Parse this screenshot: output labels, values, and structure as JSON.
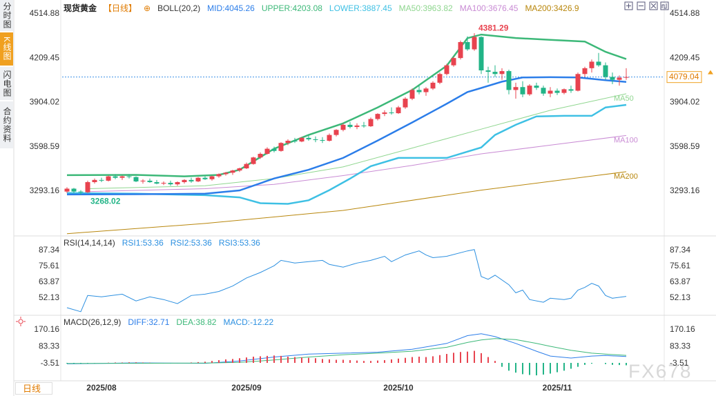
{
  "sidebar": {
    "tabs": [
      "分时图",
      "K线图",
      "闪电图",
      "合约资料"
    ]
  },
  "period_button": "日线",
  "watermark": "FX678",
  "chart_data": [
    {
      "type": "candlestick",
      "title": "现货黄金",
      "period": "【日线】",
      "indicator": "BOLL(20,2)",
      "up_color": "#e8434f",
      "down_color": "#22b487",
      "ylim": [
        2993.7,
        4562.4
      ],
      "yticks": [
        4514.88,
        4209.45,
        3904.02,
        3598.59,
        3293.16
      ],
      "last_price": 4079.04,
      "annotations": [
        {
          "x": 59,
          "value": 4381.29
        },
        {
          "x": 2,
          "value": 3268.02
        }
      ],
      "candles": [
        [
          3290,
          3320,
          3280,
          3310
        ],
        [
          3310,
          3315,
          3280,
          3290
        ],
        [
          3290,
          3300,
          3268.02,
          3285
        ],
        [
          3285,
          3365,
          3280,
          3355
        ],
        [
          3355,
          3380,
          3345,
          3370
        ],
        [
          3370,
          3385,
          3355,
          3365
        ],
        [
          3365,
          3400,
          3360,
          3395
        ],
        [
          3395,
          3410,
          3375,
          3385
        ],
        [
          3385,
          3400,
          3370,
          3395
        ],
        [
          3395,
          3410,
          3380,
          3390
        ],
        [
          3390,
          3395,
          3355,
          3360
        ],
        [
          3360,
          3375,
          3345,
          3365
        ],
        [
          3365,
          3380,
          3350,
          3355
        ],
        [
          3355,
          3370,
          3340,
          3345
        ],
        [
          3345,
          3360,
          3335,
          3350
        ],
        [
          3350,
          3365,
          3330,
          3340
        ],
        [
          3340,
          3360,
          3330,
          3355
        ],
        [
          3355,
          3375,
          3345,
          3370
        ],
        [
          3370,
          3385,
          3350,
          3360
        ],
        [
          3360,
          3390,
          3355,
          3385
        ],
        [
          3385,
          3395,
          3370,
          3375
        ],
        [
          3375,
          3400,
          3365,
          3395
        ],
        [
          3395,
          3415,
          3385,
          3410
        ],
        [
          3410,
          3425,
          3400,
          3420
        ],
        [
          3420,
          3440,
          3405,
          3435
        ],
        [
          3435,
          3455,
          3425,
          3450
        ],
        [
          3450,
          3490,
          3445,
          3480
        ],
        [
          3480,
          3530,
          3475,
          3525
        ],
        [
          3525,
          3560,
          3515,
          3550
        ],
        [
          3550,
          3595,
          3545,
          3585
        ],
        [
          3585,
          3600,
          3560,
          3570
        ],
        [
          3570,
          3630,
          3565,
          3625
        ],
        [
          3625,
          3650,
          3610,
          3640
        ],
        [
          3640,
          3660,
          3625,
          3635
        ],
        [
          3635,
          3665,
          3630,
          3660
        ],
        [
          3660,
          3680,
          3640,
          3650
        ],
        [
          3650,
          3670,
          3630,
          3645
        ],
        [
          3645,
          3665,
          3625,
          3640
        ],
        [
          3640,
          3690,
          3635,
          3680
        ],
        [
          3680,
          3720,
          3670,
          3715
        ],
        [
          3715,
          3760,
          3705,
          3750
        ],
        [
          3750,
          3770,
          3725,
          3735
        ],
        [
          3735,
          3760,
          3720,
          3745
        ],
        [
          3745,
          3770,
          3730,
          3740
        ],
        [
          3740,
          3800,
          3735,
          3790
        ],
        [
          3790,
          3830,
          3780,
          3825
        ],
        [
          3825,
          3850,
          3810,
          3835
        ],
        [
          3835,
          3870,
          3820,
          3830
        ],
        [
          3830,
          3880,
          3825,
          3870
        ],
        [
          3870,
          3940,
          3860,
          3930
        ],
        [
          3930,
          4000,
          3920,
          3990
        ],
        [
          3990,
          4020,
          3960,
          3975
        ],
        [
          3975,
          4010,
          3950,
          4000
        ],
        [
          4000,
          4050,
          3990,
          4040
        ],
        [
          4040,
          4110,
          4030,
          4100
        ],
        [
          4100,
          4170,
          4090,
          4160
        ],
        [
          4160,
          4220,
          4150,
          4210
        ],
        [
          4210,
          4330,
          4200,
          4320
        ],
        [
          4320,
          4360,
          4260,
          4270
        ],
        [
          4270,
          4381.29,
          4260,
          4355
        ],
        [
          4355,
          4360,
          4100,
          4125
        ],
        [
          4125,
          4150,
          4040,
          4115
        ],
        [
          4115,
          4160,
          4080,
          4100
        ],
        [
          4100,
          4140,
          4060,
          4120
        ],
        [
          4120,
          4130,
          3960,
          3990
        ],
        [
          3990,
          4040,
          3930,
          4010
        ],
        [
          4010,
          4050,
          3940,
          3960
        ],
        [
          3960,
          4030,
          3950,
          4020
        ],
        [
          4020,
          4040,
          3990,
          4005
        ],
        [
          4005,
          4020,
          3950,
          3965
        ],
        [
          3965,
          4010,
          3940,
          3985
        ],
        [
          3985,
          4000,
          3955,
          3970
        ],
        [
          3970,
          4000,
          3960,
          3995
        ],
        [
          3995,
          4020,
          3970,
          3985
        ],
        [
          3985,
          4110,
          3980,
          4100
        ],
        [
          4100,
          4150,
          4080,
          4140
        ],
        [
          4140,
          4200,
          4110,
          4185
        ],
        [
          4185,
          4245,
          4150,
          4160
        ],
        [
          4160,
          4180,
          4060,
          4080
        ],
        [
          4080,
          4110,
          4030,
          4060
        ],
        [
          4060,
          4090,
          4020,
          4075
        ],
        [
          4075,
          4140,
          4060,
          4079.04
        ]
      ],
      "series": [
        {
          "name": "MID:4045.26",
          "color": "#2b7de9",
          "width": 2.5,
          "x": [
            0,
            10,
            20,
            25,
            30,
            35,
            40,
            45,
            50,
            55,
            58,
            60,
            63,
            66,
            70,
            74,
            78,
            81
          ],
          "values": [
            3270,
            3272,
            3275,
            3298,
            3380,
            3440,
            3522,
            3641,
            3766,
            3895,
            3976,
            4004,
            4047,
            4076,
            4078,
            4076,
            4057,
            4045.26
          ]
        },
        {
          "name": "UPPER:4203.08",
          "color": "#3cb878",
          "width": 2.5,
          "x": [
            0,
            10,
            17,
            22,
            25,
            30,
            35,
            40,
            45,
            50,
            55,
            58,
            60,
            65,
            70,
            75,
            78,
            81
          ],
          "values": [
            3403,
            3405,
            3395,
            3405,
            3440,
            3585,
            3680,
            3760,
            3870,
            3990,
            4157,
            4347,
            4372,
            4348,
            4335,
            4324,
            4253,
            4203.08
          ]
        },
        {
          "name": "LOWER:3887.45",
          "color": "#3ec0e4",
          "width": 2.5,
          "x": [
            0,
            10,
            20,
            25,
            28,
            32,
            35,
            38,
            41,
            44,
            48,
            55,
            60,
            62,
            65,
            68,
            72,
            76,
            78,
            81
          ],
          "values": [
            3280,
            3275,
            3265,
            3250,
            3210,
            3205,
            3230,
            3300,
            3379,
            3465,
            3522,
            3522,
            3594,
            3680,
            3750,
            3808,
            3812,
            3812,
            3870,
            3887.45
          ]
        },
        {
          "name": "MA50:3963.82",
          "color": "#8fd68f",
          "width": 1,
          "end_label": "MA50",
          "x": [
            3,
            20,
            30,
            40,
            50,
            60,
            70,
            81
          ],
          "values": [
            3310,
            3330,
            3380,
            3460,
            3590,
            3720,
            3850,
            3963.82
          ]
        },
        {
          "name": "MA100:3676.45",
          "color": "#c98bd4",
          "width": 1,
          "end_label": "MA100",
          "x": [
            3,
            20,
            30,
            40,
            50,
            60,
            70,
            81
          ],
          "values": [
            3290,
            3310,
            3340,
            3400,
            3470,
            3550,
            3610,
            3676.45
          ]
        },
        {
          "name": "MA200:3426.9",
          "color": "#b8860b",
          "width": 1,
          "end_label": "MA200",
          "x": [
            0,
            20,
            40,
            60,
            81
          ],
          "values": [
            3000,
            3070,
            3160,
            3300,
            3426.9
          ]
        }
      ]
    },
    {
      "type": "line",
      "title": "RSI(14,14,14)",
      "legend": [
        "RSI1:53.36",
        "RSI2:53.36",
        "RSI3:53.36"
      ],
      "ylim": [
        40.39,
        96.53
      ],
      "yticks": [
        87.34,
        75.61,
        63.87,
        52.13
      ],
      "series": [
        {
          "color": "#2b8fe0",
          "x": [
            0,
            2,
            3,
            5,
            8,
            10,
            12,
            14,
            16,
            18,
            20,
            22,
            24,
            26,
            28,
            30,
            31,
            33,
            35,
            37,
            38,
            40,
            42,
            44,
            46,
            47,
            49,
            51,
            52,
            53,
            55,
            58,
            59,
            60,
            61,
            62,
            64,
            65,
            66,
            67,
            69,
            70,
            72,
            73,
            74,
            75,
            76,
            77,
            78,
            79,
            81
          ],
          "values": [
            45,
            42,
            54,
            53,
            55,
            50,
            53,
            51,
            48,
            54,
            55,
            57,
            61,
            67,
            71,
            76,
            80,
            78,
            79,
            80,
            77,
            75,
            78,
            80,
            83,
            79,
            84,
            87,
            84,
            82,
            83,
            87,
            88,
            68,
            66,
            69,
            62,
            56,
            58,
            51,
            49,
            52,
            51,
            52,
            58,
            60,
            63,
            61,
            54,
            52,
            53.36
          ]
        }
      ]
    },
    {
      "type": "macd",
      "title": "MACD(26,12,9)",
      "ylim": [
        -92.1,
        233.96
      ],
      "yticks": [
        170.16,
        83.33,
        -3.51
      ],
      "xticks": [
        {
          "value": 5,
          "label": "2025/08"
        },
        {
          "value": 26,
          "label": "2025/09"
        },
        {
          "value": 48,
          "label": "2025/10"
        },
        {
          "value": 71,
          "label": "2025/11"
        }
      ],
      "series": [
        {
          "name": "DIFF:32.71",
          "color": "#2b7de9",
          "x": [
            0,
            10,
            20,
            25,
            30,
            35,
            40,
            45,
            50,
            55,
            58,
            60,
            62,
            65,
            68,
            70,
            73,
            76,
            78,
            81
          ],
          "values": [
            -5,
            0,
            -2,
            10,
            30,
            45,
            50,
            55,
            70,
            100,
            140,
            150,
            135,
            100,
            60,
            35,
            25,
            35,
            38,
            32.71
          ]
        },
        {
          "name": "DEA:38.82",
          "color": "#3cb878",
          "x": [
            0,
            10,
            20,
            25,
            30,
            35,
            40,
            45,
            50,
            55,
            58,
            60,
            62,
            65,
            68,
            70,
            73,
            76,
            78,
            81
          ],
          "values": [
            -3,
            -2,
            -1,
            3,
            15,
            30,
            42,
            50,
            60,
            80,
            105,
            118,
            125,
            120,
            100,
            85,
            65,
            50,
            45,
            38.82
          ]
        },
        {
          "name": "MACD:-12.22",
          "color": "#2b8fe0",
          "up_color": "#e8434f",
          "down_color": "#22b487",
          "bars": true,
          "values": [
            -3,
            -4,
            -3,
            -2,
            -1,
            0,
            1,
            2,
            2,
            3,
            3,
            2,
            1,
            0,
            -1,
            -2,
            -1,
            0,
            2,
            4,
            6,
            10,
            14,
            18,
            20,
            24,
            28,
            32,
            34,
            36,
            38,
            36,
            32,
            30,
            28,
            26,
            24,
            20,
            18,
            16,
            16,
            14,
            12,
            10,
            10,
            12,
            14,
            18,
            22,
            26,
            30,
            32,
            30,
            34,
            40,
            46,
            52,
            56,
            58,
            62,
            50,
            30,
            10,
            -20,
            -40,
            -50,
            -58,
            -62,
            -64,
            -60,
            -55,
            -48,
            -40,
            -30,
            -20,
            -10,
            -4,
            0,
            -6,
            -10,
            -11,
            -12.22
          ]
        }
      ]
    }
  ]
}
